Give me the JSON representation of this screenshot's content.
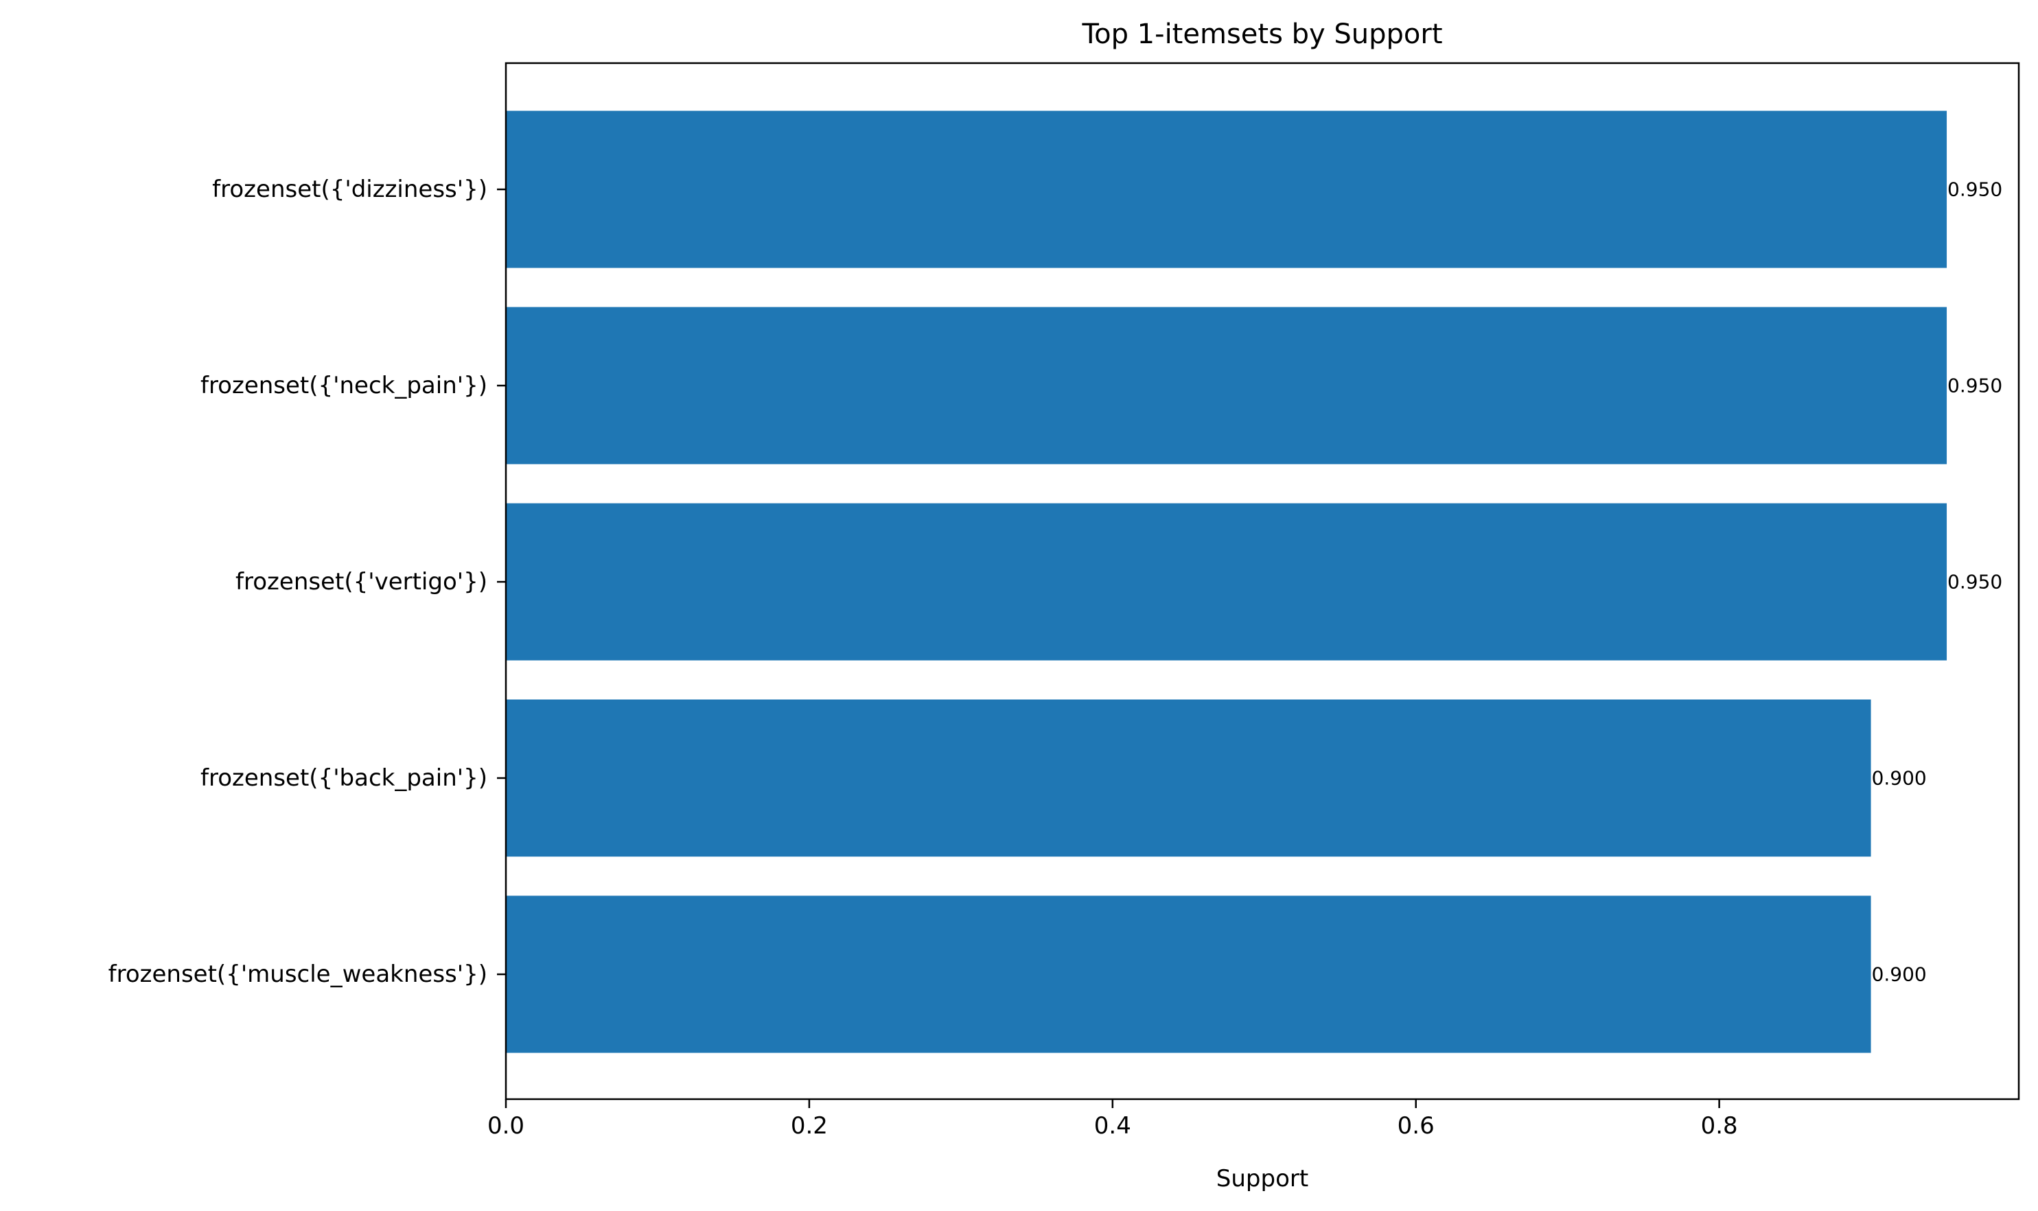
{
  "chart_data": {
    "type": "bar",
    "orientation": "horizontal",
    "title": "Top 1-itemsets by Support",
    "xlabel": "Support",
    "ylabel": "",
    "categories": [
      "frozenset({'dizziness'})",
      "frozenset({'neck_pain'})",
      "frozenset({'vertigo'})",
      "frozenset({'back_pain'})",
      "frozenset({'muscle_weakness'})"
    ],
    "values": [
      0.95,
      0.95,
      0.95,
      0.9,
      0.9
    ],
    "data_labels": [
      "0.950",
      "0.950",
      "0.950",
      "0.900",
      "0.900"
    ],
    "xlim": [
      0,
      0.9975
    ],
    "xticks": [
      0.0,
      0.2,
      0.4,
      0.6,
      0.8
    ],
    "xtick_labels": [
      "0.0",
      "0.2",
      "0.4",
      "0.6",
      "0.8"
    ],
    "grid": false,
    "legend": "none",
    "bar_color": "#1f77b4"
  }
}
